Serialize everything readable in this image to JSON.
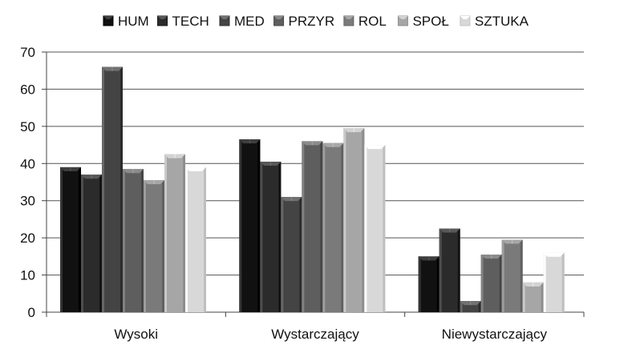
{
  "chart_data": {
    "type": "bar",
    "categories": [
      "Wysoki",
      "Wystarczający",
      "Niewystarczający"
    ],
    "series": [
      {
        "name": "HUM",
        "values": [
          39,
          46.5,
          15
        ],
        "color": "#111111"
      },
      {
        "name": "TECH",
        "values": [
          37,
          40.5,
          22.5
        ],
        "color": "#2b2b2b"
      },
      {
        "name": "MED",
        "values": [
          66,
          31,
          3
        ],
        "color": "#444444"
      },
      {
        "name": "PRZYR",
        "values": [
          38.5,
          46,
          15.5
        ],
        "color": "#5e5e5e"
      },
      {
        "name": "ROL",
        "values": [
          35.5,
          45.5,
          19.5
        ],
        "color": "#7a7a7a"
      },
      {
        "name": "SPOŁ",
        "values": [
          42.5,
          49.5,
          8
        ],
        "color": "#a6a6a6"
      },
      {
        "name": "SZTUKA",
        "values": [
          39,
          45,
          16
        ],
        "color": "#d8d8d8"
      }
    ],
    "yticks": [
      "0",
      "10",
      "20",
      "30",
      "40",
      "50",
      "60",
      "70"
    ],
    "ylim": [
      0,
      70
    ],
    "title": "",
    "xlabel": "",
    "ylabel": "",
    "grid": true,
    "legend_position": "top"
  }
}
